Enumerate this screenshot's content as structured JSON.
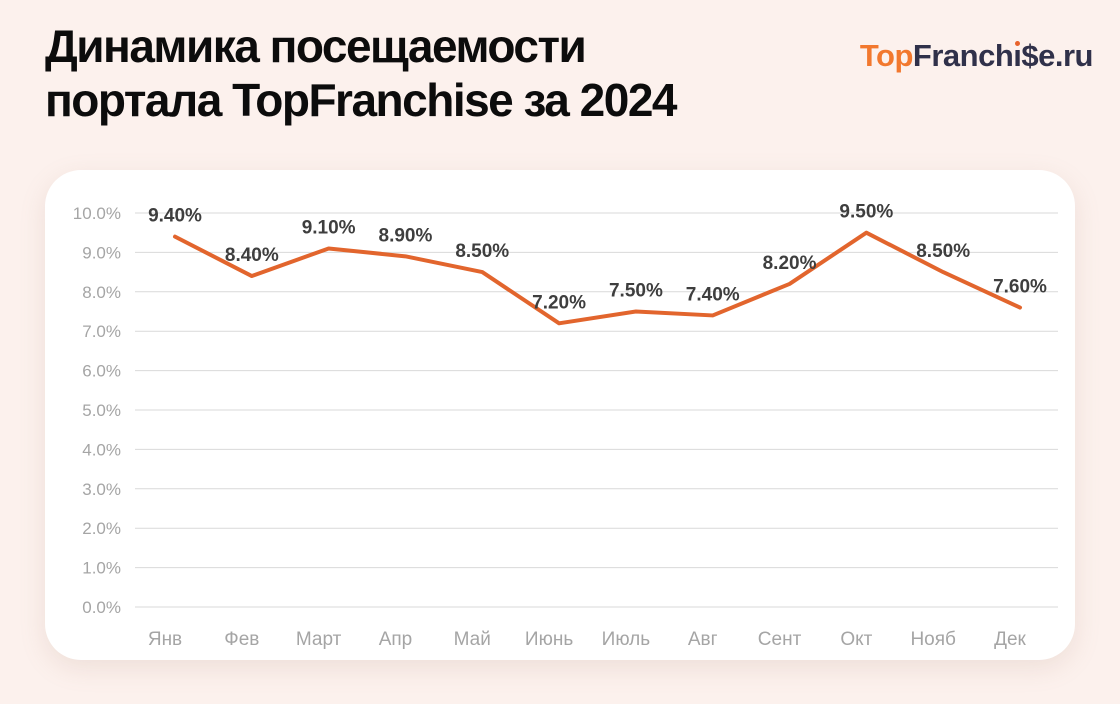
{
  "page": {
    "title_line1": "Динамика посещаемости",
    "title_line2": "портала TopFranchise за 2024",
    "background_color": "#fcf1ed",
    "title_color": "#0c0c0c"
  },
  "logo": {
    "part_top": "Top",
    "part_franch": "Franch",
    "part_i": "ı",
    "part_rest": "$e.ru",
    "top_color": "#f2782e",
    "rest_color": "#30314a",
    "i_dot_color": "#e8632c"
  },
  "chart_data": {
    "type": "line",
    "title": "Динамика посещаемости портала TopFranchise за 2024",
    "xlabel": "",
    "ylabel": "",
    "categories": [
      "Янв",
      "Фев",
      "Март",
      "Апр",
      "Май",
      "Июнь",
      "Июль",
      "Авг",
      "Сент",
      "Окт",
      "Нояб",
      "Дек"
    ],
    "values": [
      9.4,
      8.4,
      9.1,
      8.9,
      8.5,
      7.2,
      7.5,
      7.4,
      8.2,
      9.5,
      8.5,
      7.6
    ],
    "data_labels": [
      "9.40%",
      "8.40%",
      "9.10%",
      "8.90%",
      "8.50%",
      "7.20%",
      "7.50%",
      "7.40%",
      "8.20%",
      "9.50%",
      "8.50%",
      "7.60%"
    ],
    "y_ticks": [
      "0.0%",
      "1.0%",
      "2.0%",
      "3.0%",
      "4.0%",
      "5.0%",
      "6.0%",
      "7.0%",
      "8.0%",
      "9.0%",
      "10.0%"
    ],
    "ylim": [
      0,
      10
    ],
    "grid": true,
    "legend": false,
    "line_color": "#e2652d",
    "grid_color": "#d9d9d9",
    "axis_label_color": "#a5a5a5",
    "data_label_color": "#3e3e3e"
  }
}
